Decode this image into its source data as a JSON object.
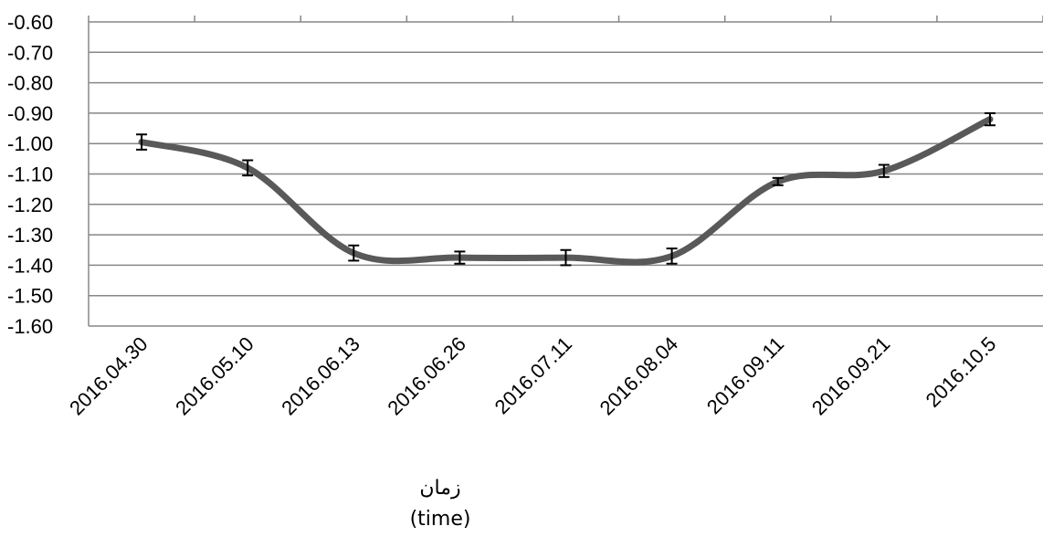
{
  "chart_data": {
    "type": "line",
    "title": "",
    "xlabel": [
      "زمان",
      "(time)"
    ],
    "ylabel": "",
    "ylim": [
      -1.6,
      -0.6
    ],
    "yticks": [
      "-0.60",
      "-0.70",
      "-0.80",
      "-0.90",
      "-1.00",
      "-1.10",
      "-1.20",
      "-1.30",
      "-1.40",
      "-1.50",
      "-1.60"
    ],
    "categories": [
      "2016.04.30",
      "2016.05.10",
      "2016.06.13",
      "2016.06.26",
      "2016.07.11",
      "2016.08.04",
      "2016.09.11",
      "2016.09.21",
      "2016.10.5"
    ],
    "series": [
      {
        "values": [
          -0.995,
          -1.08,
          -1.36,
          -1.375,
          -1.375,
          -1.37,
          -1.125,
          -1.09,
          -0.92
        ],
        "error": [
          0.025,
          0.025,
          0.025,
          0.02,
          0.025,
          0.025,
          0.012,
          0.02,
          0.02
        ],
        "color": "#595959"
      }
    ],
    "grid": true,
    "legend": "none"
  }
}
